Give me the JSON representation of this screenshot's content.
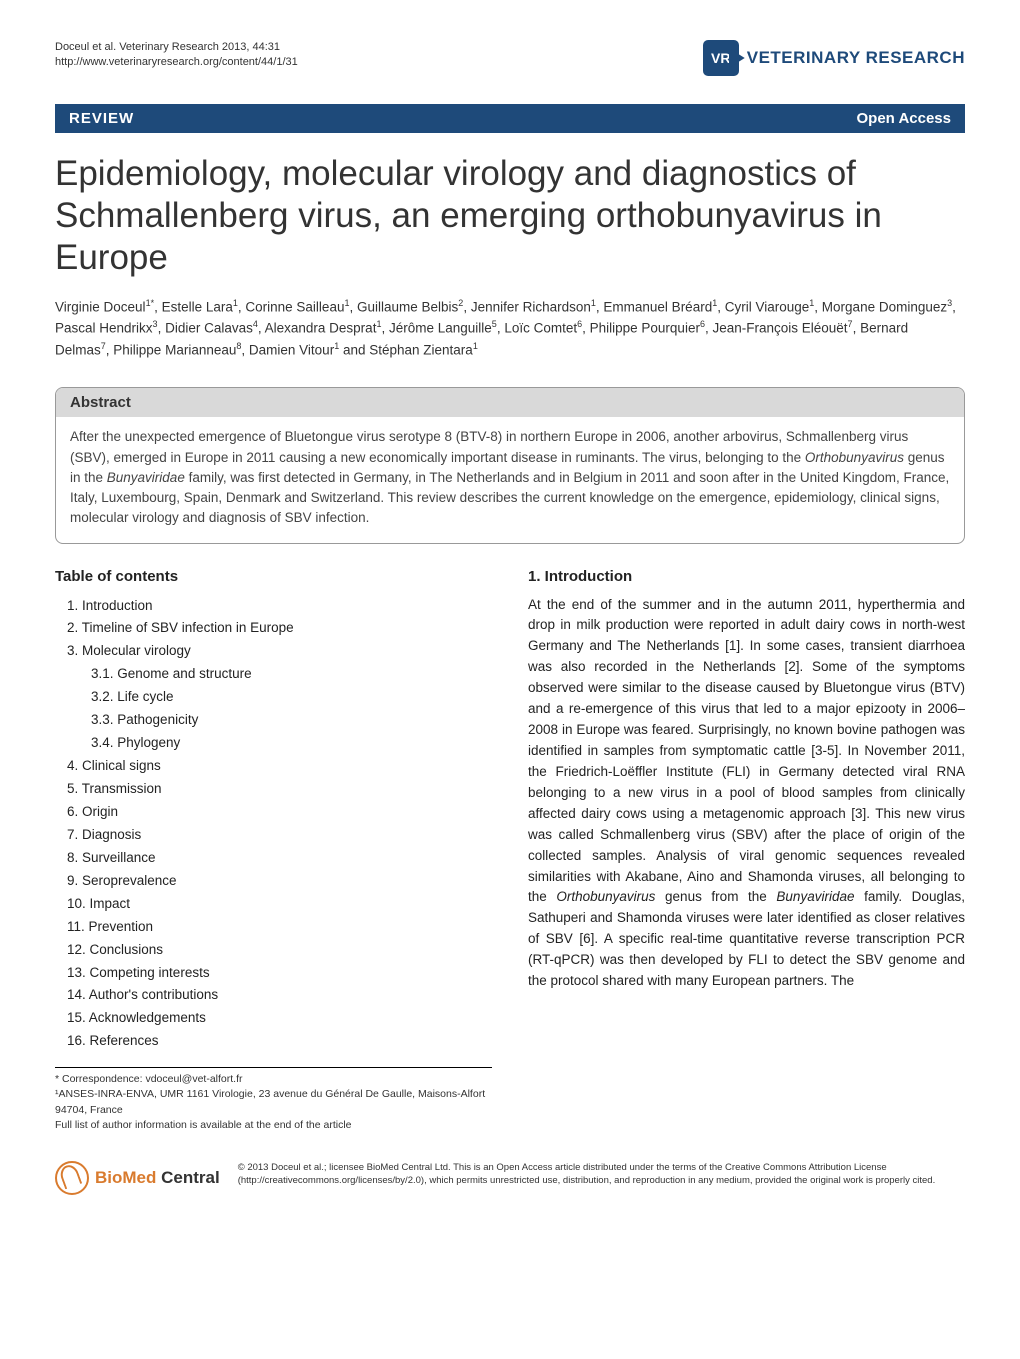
{
  "header": {
    "citation": "Doceul et al. Veterinary Research 2013, 44:31",
    "url": "http://www.veterinaryresearch.org/content/44/1/31",
    "journal_name": "VETERINARY RESEARCH",
    "logo_text": "VR"
  },
  "review_bar": {
    "label": "REVIEW",
    "open_access": "Open Access"
  },
  "title": "Epidemiology, molecular virology and diagnostics of Schmallenberg virus, an emerging orthobunyavirus in Europe",
  "authors_html": "Virginie Doceul<sup>1*</sup>, Estelle Lara<sup>1</sup>, Corinne Sailleau<sup>1</sup>, Guillaume Belbis<sup>2</sup>, Jennifer Richardson<sup>1</sup>, Emmanuel Bréard<sup>1</sup>, Cyril Viarouge<sup>1</sup>, Morgane Dominguez<sup>3</sup>, Pascal Hendrikx<sup>3</sup>, Didier Calavas<sup>4</sup>, Alexandra Desprat<sup>1</sup>, Jérôme Languille<sup>5</sup>, Loïc Comtet<sup>6</sup>, Philippe Pourquier<sup>6</sup>, Jean-François Eléouët<sup>7</sup>, Bernard Delmas<sup>7</sup>, Philippe Marianneau<sup>8</sup>, Damien Vitour<sup>1</sup> and Stéphan Zientara<sup>1</sup>",
  "abstract": {
    "heading": "Abstract",
    "text": "After the unexpected emergence of Bluetongue virus serotype 8 (BTV-8) in northern Europe in 2006, another arbovirus, Schmallenberg virus (SBV), emerged in Europe in 2011 causing a new economically important disease in ruminants. The virus, belonging to the Orthobunyavirus genus in the Bunyaviridae family, was first detected in Germany, in The Netherlands and in Belgium in 2011 and soon after in the United Kingdom, France, Italy, Luxembourg, Spain, Denmark and Switzerland. This review describes the current knowledge on the emergence, epidemiology, clinical signs, molecular virology and diagnosis of SBV infection."
  },
  "toc": {
    "heading": "Table of contents",
    "items": [
      "1. Introduction",
      "2. Timeline of SBV infection in Europe",
      "3. Molecular virology"
    ],
    "subitems": [
      "3.1. Genome and structure",
      "3.2. Life cycle",
      "3.3. Pathogenicity",
      "3.4. Phylogeny"
    ],
    "items2": [
      "4. Clinical signs",
      "5. Transmission",
      "6. Origin",
      "7. Diagnosis",
      "8. Surveillance",
      "9. Seroprevalence",
      "10. Impact",
      "11. Prevention",
      "12. Conclusions",
      "13. Competing interests",
      "14. Author's contributions",
      "15. Acknowledgements",
      "16. References"
    ]
  },
  "correspondence": {
    "line1": "* Correspondence: vdoceul@vet-alfort.fr",
    "line2": "¹ANSES-INRA-ENVA, UMR 1161 Virologie, 23 avenue du Général De Gaulle, Maisons-Alfort 94704, France",
    "line3": "Full list of author information is available at the end of the article"
  },
  "intro": {
    "heading": "1. Introduction",
    "text": "At the end of the summer and in the autumn 2011, hyperthermia and drop in milk production were reported in adult dairy cows in north-west Germany and The Netherlands [1]. In some cases, transient diarrhoea was also recorded in the Netherlands [2]. Some of the symptoms observed were similar to the disease caused by Bluetongue virus (BTV) and a re-emergence of this virus that led to a major epizooty in 2006–2008 in Europe was feared. Surprisingly, no known bovine pathogen was identified in samples from symptomatic cattle [3-5]. In November 2011, the Friedrich-Loëffler Institute (FLI) in Germany detected viral RNA belonging to a new virus in a pool of blood samples from clinically affected dairy cows using a metagenomic approach [3]. This new virus was called Schmallenberg virus (SBV) after the place of origin of the collected samples. Analysis of viral genomic sequences revealed similarities with Akabane, Aino and Shamonda viruses, all belonging to the Orthobunyavirus genus from the Bunyaviridae family. Douglas, Sathuperi and Shamonda viruses were later identified as closer relatives of SBV [6]. A specific real-time quantitative reverse transcription PCR (RT-qPCR) was then developed by FLI to detect the SBV genome and the protocol shared with many European partners. The"
  },
  "footer": {
    "bmc_bio": "BioMed",
    "bmc_central": " Central",
    "license": "© 2013 Doceul et al.; licensee BioMed Central Ltd. This is an Open Access article distributed under the terms of the Creative Commons Attribution License (http://creativecommons.org/licenses/by/2.0), which permits unrestricted use, distribution, and reproduction in any medium, provided the original work is properly cited."
  },
  "colors": {
    "primary": "#1e4a7a",
    "abstract_bg": "#d9d9d9",
    "border": "#999999",
    "bmc_orange": "#d97b2e"
  }
}
